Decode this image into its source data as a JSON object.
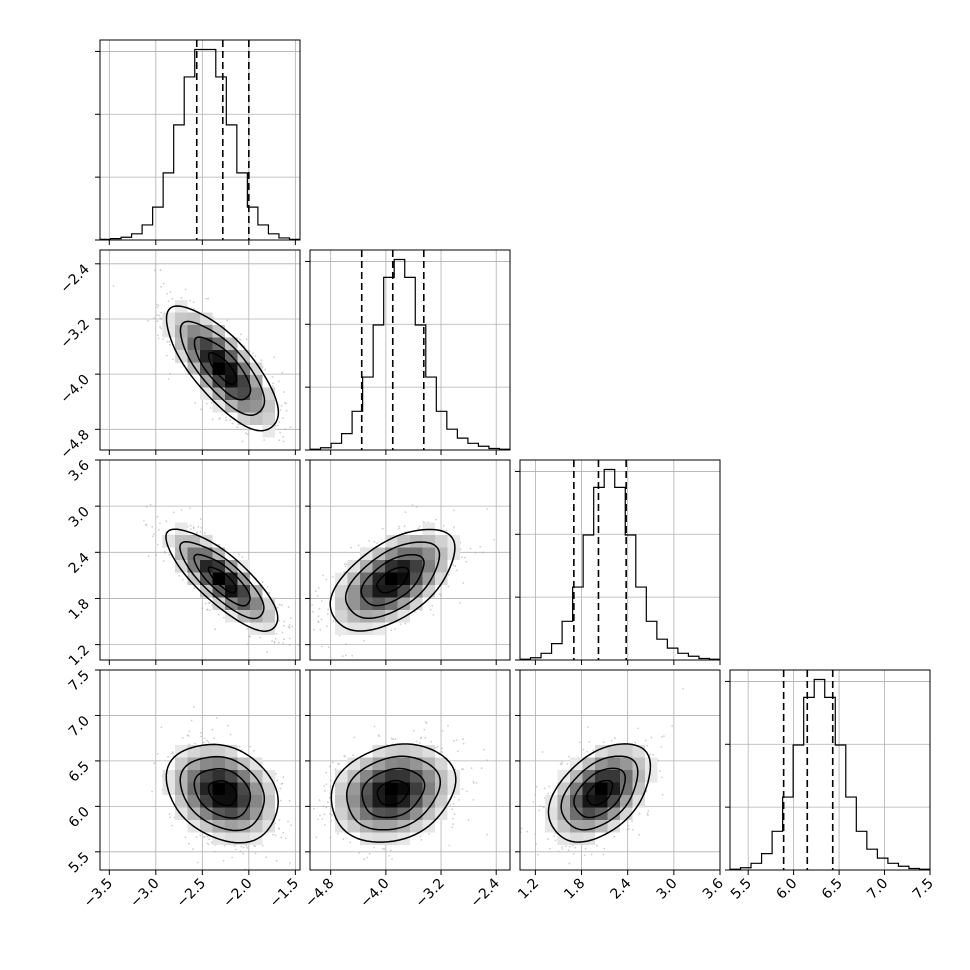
{
  "chart_data": {
    "type": "corner",
    "parameters": [
      {
        "id": "p0",
        "range": [
          -3.6,
          -1.45
        ],
        "ticks": [
          -3.5,
          -3.0,
          -2.5,
          -2.0,
          -1.5
        ],
        "tick_labels": [
          "−3.5",
          "−3.0",
          "−2.5",
          "−2.0",
          "−1.5"
        ],
        "quantiles": [
          -2.56,
          -2.28,
          -2.0
        ],
        "hist_counts": [
          1,
          2,
          4,
          9,
          22,
          48,
          98,
          168,
          238,
          278,
          278,
          238,
          168,
          98,
          48,
          22,
          9,
          3,
          1
        ]
      },
      {
        "id": "p1",
        "range": [
          -5.1,
          -2.2
        ],
        "ticks": [
          -4.8,
          -4.0,
          -3.2,
          -2.4
        ],
        "tick_labels": [
          "−4.8",
          "−4.0",
          "−3.2",
          "−2.4"
        ],
        "quantiles": [
          -4.35,
          -3.9,
          -3.45
        ],
        "hist_counts": [
          1,
          3,
          9,
          22,
          52,
          98,
          168,
          232,
          256,
          232,
          168,
          98,
          52,
          28,
          16,
          9,
          5,
          2,
          1
        ]
      },
      {
        "id": "p2",
        "range": [
          1.0,
          3.6
        ],
        "ticks": [
          1.2,
          1.8,
          2.4,
          3.0,
          3.6
        ],
        "tick_labels": [
          "1.2",
          "1.8",
          "2.4",
          "3.0",
          "3.6"
        ],
        "quantiles": [
          1.7,
          2.02,
          2.38
        ],
        "hist_counts": [
          1,
          3,
          9,
          22,
          52,
          98,
          168,
          232,
          256,
          232,
          168,
          98,
          52,
          28,
          16,
          9,
          5,
          2,
          1
        ]
      },
      {
        "id": "p3",
        "range": [
          5.3,
          7.5
        ],
        "ticks": [
          5.5,
          6.0,
          6.5,
          7.0,
          7.5
        ],
        "tick_labels": [
          "5.5",
          "6.0",
          "6.5",
          "7.0",
          "7.5"
        ],
        "quantiles": [
          5.89,
          6.15,
          6.43
        ],
        "hist_counts": [
          1,
          3,
          9,
          22,
          52,
          98,
          168,
          232,
          256,
          232,
          168,
          98,
          52,
          28,
          16,
          9,
          5,
          2,
          1
        ]
      }
    ],
    "joint_panels": [
      {
        "x": "p0",
        "y": "p1",
        "center": [
          -2.28,
          -3.92
        ],
        "spread": [
          0.3,
          0.45
        ],
        "corr": -0.75
      },
      {
        "x": "p0",
        "y": "p2",
        "center": [
          -2.28,
          2.04
        ],
        "spread": [
          0.3,
          0.33
        ],
        "corr": -0.8
      },
      {
        "x": "p1",
        "y": "p2",
        "center": [
          -3.9,
          2.04
        ],
        "spread": [
          0.45,
          0.33
        ],
        "corr": 0.55
      },
      {
        "x": "p0",
        "y": "p3",
        "center": [
          -2.28,
          6.15
        ],
        "spread": [
          0.3,
          0.27
        ],
        "corr": -0.25
      },
      {
        "x": "p1",
        "y": "p3",
        "center": [
          -3.9,
          6.15
        ],
        "spread": [
          0.45,
          0.27
        ],
        "corr": 0.2
      },
      {
        "x": "p2",
        "y": "p3",
        "center": [
          2.04,
          6.15
        ],
        "spread": [
          0.33,
          0.27
        ],
        "corr": 0.45
      }
    ],
    "contour_levels_sigma": [
      0.5,
      1.0,
      1.5,
      2.0
    ],
    "grid": true
  }
}
